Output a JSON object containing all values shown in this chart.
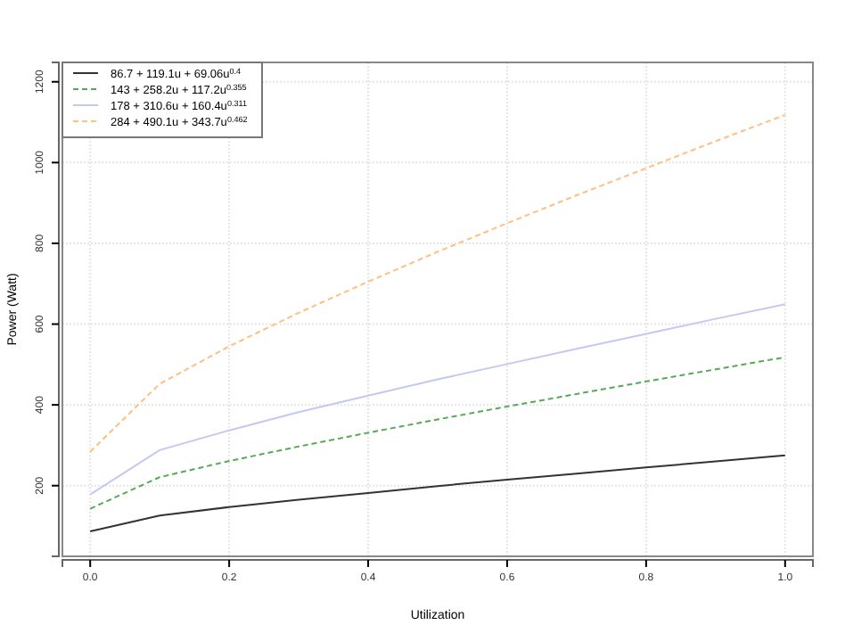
{
  "chart_data": {
    "type": "line",
    "xlabel": "Utilization",
    "ylabel": "Power (Watt)",
    "x": [
      0,
      0.1,
      0.2,
      0.3,
      0.4,
      0.5,
      0.6,
      0.7,
      0.8,
      0.9,
      1.0
    ],
    "series": [
      {
        "name": "86.7 + 119.1u + 69.06u$^{0.4}$",
        "color": "#333333",
        "line_style": "solid",
        "values": [
          87,
          126,
          147,
          165,
          182,
          199,
          215,
          230,
          245,
          260,
          275
        ]
      },
      {
        "name": "143 + 258.2u + 117.2u$^{0.355}$",
        "color": "#55aa55",
        "line_style": "dashed",
        "values": [
          143,
          221,
          261,
          297,
          331,
          364,
          396,
          427,
          458,
          488,
          518
        ]
      },
      {
        "name": "178 + 310.6u + 160.4u$^{0.311}$",
        "color": "#c3c9f2",
        "line_style": "solid",
        "values": [
          178,
          288,
          337,
          382,
          423,
          463,
          501,
          539,
          576,
          613,
          649
        ]
      },
      {
        "name": "284 + 490.1u + 343.7u$^{0.462}$",
        "color": "#ffbf80",
        "line_style": "dashed",
        "values": [
          284,
          452,
          545,
          628,
          705,
          779,
          850,
          919,
          986,
          1053,
          1118
        ]
      }
    ],
    "xlim": [
      -0.04,
      1.04
    ],
    "xticks": [
      {
        "value": 0,
        "label": "0.0"
      },
      0.2,
      0.4,
      0.6,
      0.8,
      {
        "value": 1,
        "label": "1.0"
      }
    ],
    "ylim": [
      25,
      1248
    ],
    "yticks": [
      200,
      400,
      600,
      800,
      1000,
      1200
    ],
    "grid": true,
    "legend": "top left"
  }
}
